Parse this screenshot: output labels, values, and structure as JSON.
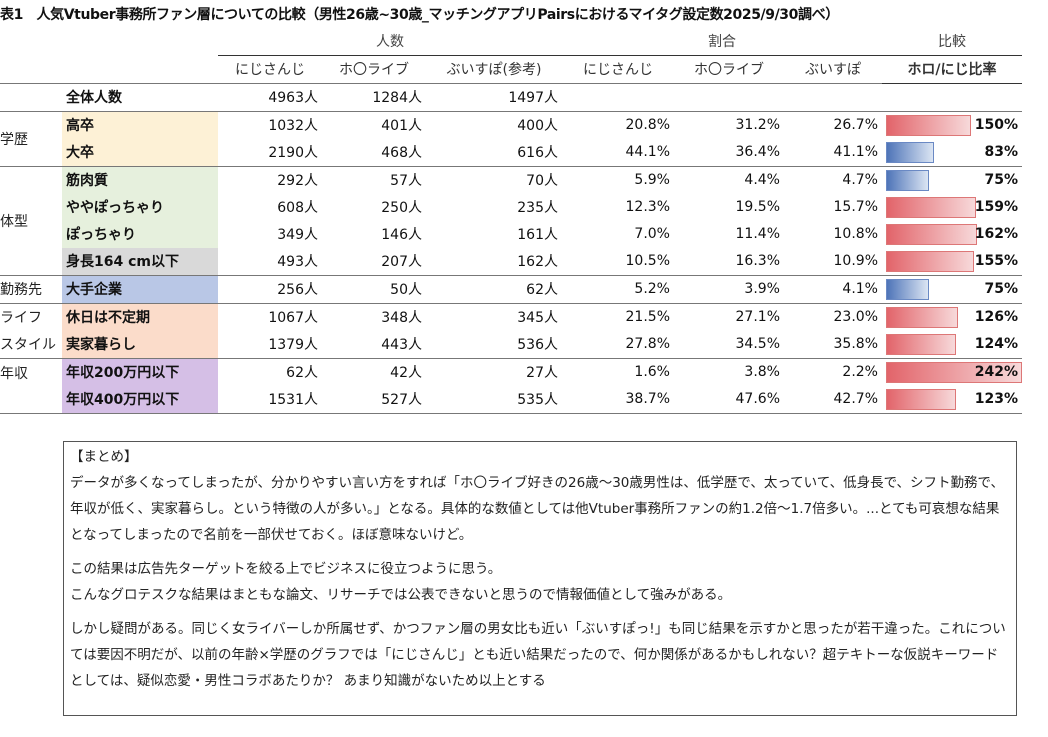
{
  "title": "表1　人気Vtuber事務所ファン層についての比較（男性26歳~30歳_マッチングアプリPairsにおけるマイタグ設定数2025/9/30調べ）",
  "groups": {
    "count": "人数",
    "ratio": "割合",
    "compare": "比較"
  },
  "columns": {
    "count": [
      "にじさんじ",
      "ホ〇ライブ",
      "ぶいすぽ(参考)"
    ],
    "ratio": [
      "にじさんじ",
      "ホ〇ライブ",
      "ぶいすぽ"
    ],
    "compare": "ホロ/にじ比率"
  },
  "total": {
    "label": "全体人数",
    "values": [
      "4963人",
      "1284人",
      "1497人"
    ]
  },
  "categories": {
    "edu": "学歴",
    "body": "体型",
    "work": "勤務先",
    "life1": "ライフ",
    "life2": "スタイル",
    "income": "年収"
  },
  "rows": [
    {
      "label": "高卒",
      "counts": [
        "1032人",
        "401人",
        "400人"
      ],
      "ratios": [
        "20.8%",
        "31.2%",
        "26.7%"
      ],
      "compare": "150%",
      "compare_value": 150
    },
    {
      "label": "大卒",
      "counts": [
        "2190人",
        "468人",
        "616人"
      ],
      "ratios": [
        "44.1%",
        "36.4%",
        "41.1%"
      ],
      "compare": "83%",
      "compare_value": 83
    },
    {
      "label": "筋肉質",
      "counts": [
        "292人",
        "57人",
        "70人"
      ],
      "ratios": [
        "5.9%",
        "4.4%",
        "4.7%"
      ],
      "compare": "75%",
      "compare_value": 75
    },
    {
      "label": "ややぽっちゃり",
      "counts": [
        "608人",
        "250人",
        "235人"
      ],
      "ratios": [
        "12.3%",
        "19.5%",
        "15.7%"
      ],
      "compare": "159%",
      "compare_value": 159
    },
    {
      "label": "ぽっちゃり",
      "counts": [
        "349人",
        "146人",
        "161人"
      ],
      "ratios": [
        "7.0%",
        "11.4%",
        "10.8%"
      ],
      "compare": "162%",
      "compare_value": 162
    },
    {
      "label": "身長164 cm以下",
      "counts": [
        "493人",
        "207人",
        "162人"
      ],
      "ratios": [
        "10.5%",
        "16.3%",
        "10.9%"
      ],
      "compare": "155%",
      "compare_value": 155
    },
    {
      "label": "大手企業",
      "counts": [
        "256人",
        "50人",
        "62人"
      ],
      "ratios": [
        "5.2%",
        "3.9%",
        "4.1%"
      ],
      "compare": "75%",
      "compare_value": 75
    },
    {
      "label": "休日は不定期",
      "counts": [
        "1067人",
        "348人",
        "345人"
      ],
      "ratios": [
        "21.5%",
        "27.1%",
        "23.0%"
      ],
      "compare": "126%",
      "compare_value": 126
    },
    {
      "label": "実家暮らし",
      "counts": [
        "1379人",
        "443人",
        "536人"
      ],
      "ratios": [
        "27.8%",
        "34.5%",
        "35.8%"
      ],
      "compare": "124%",
      "compare_value": 124
    },
    {
      "label": "年収200万円以下",
      "counts": [
        "62人",
        "42人",
        "27人"
      ],
      "ratios": [
        "1.6%",
        "3.8%",
        "2.2%"
      ],
      "compare": "242%",
      "compare_value": 242
    },
    {
      "label": "年収400万円以下",
      "counts": [
        "1531人",
        "527人",
        "535人"
      ],
      "ratios": [
        "38.7%",
        "47.6%",
        "42.7%"
      ],
      "compare": "123%",
      "compare_value": 123
    }
  ],
  "colors": {
    "edu": "#fdf1d6",
    "body": "#e6f0dd",
    "height": "#d9d9d9",
    "work": "#b9c7e6",
    "life": "#fbdcca",
    "income": "#d5bfe6",
    "bar_up": "#e2646a",
    "bar_down": "#4e74b8"
  },
  "summary": {
    "heading": "【まとめ】",
    "p1": "データが多くなってしまったが、分かりやすい言い方をすれば「ホ〇ライブ好きの26歳～30歳男性は、低学歴で、太っていて、低身長で、シフト勤務で、年収が低く、実家暮らし。という特徴の人が多い。」となる。具体的な数値としては他Vtuber事務所ファンの約1.2倍～1.7倍多い。...とても可哀想な結果となってしまったので名前を一部伏せておく。ほぼ意味ないけど。",
    "p2a": "この結果は広告先ターゲットを絞る上でビジネスに役立つように思う。",
    "p2b": "こんなグロテスクな結果はまともな論文、リサーチでは公表できないと思うので情報価値として強みがある。",
    "p3": "しかし疑問がある。同じく女ライバーしか所属せず、かつファン層の男女比も近い「ぶいすぽっ!」も同じ結果を示すかと思ったが若干違った。これについては要因不明だが、以前の年齢×学歴のグラフでは「にじさんじ」とも近い結果だったので、何か関係があるかもしれない？超テキトーな仮説キーワードとしては、疑似恋愛・男性コラボあたりか？ あまり知識がないため以上とする"
  }
}
